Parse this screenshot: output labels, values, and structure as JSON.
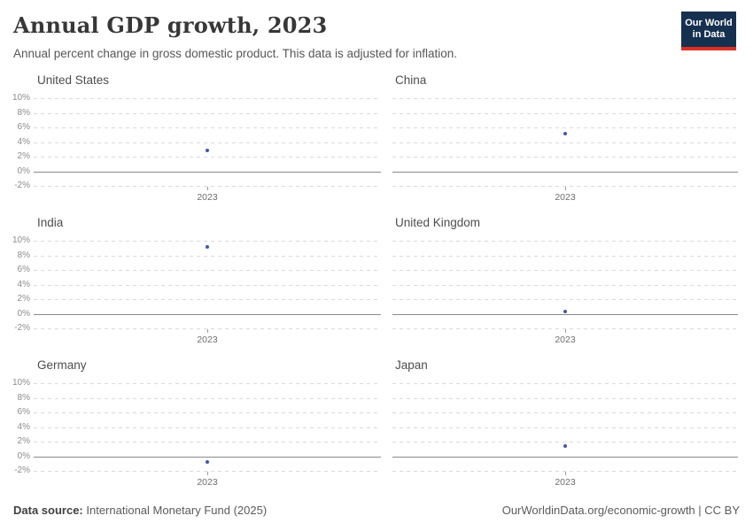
{
  "header": {
    "title": "Annual GDP growth, 2023",
    "subtitle": "Annual percent change in gross domestic product. This data is adjusted for inflation.",
    "logo": {
      "line1": "Our World",
      "line2": "in Data"
    }
  },
  "chart_data": {
    "type": "scatter",
    "facet_layout": "2x3",
    "x": [
      2023
    ],
    "x_tick_label": "2023",
    "y_ticks": [
      "10%",
      "8%",
      "6%",
      "4%",
      "2%",
      "0%",
      "-2%"
    ],
    "ylim": [
      -2,
      10
    ],
    "grid": "dashed horizontal",
    "panels": [
      {
        "name": "United States",
        "year": 2023,
        "value": 2.9
      },
      {
        "name": "China",
        "year": 2023,
        "value": 5.2
      },
      {
        "name": "India",
        "year": 2023,
        "value": 9.2
      },
      {
        "name": "United Kingdom",
        "year": 2023,
        "value": 0.3
      },
      {
        "name": "Germany",
        "year": 2023,
        "value": -0.7
      },
      {
        "name": "Japan",
        "year": 2023,
        "value": 1.4
      }
    ],
    "ylabel": "",
    "xlabel": ""
  },
  "footer": {
    "source_label": "Data source:",
    "source_value": " International Monetary Fund (2025)",
    "link": "OurWorldinData.org/economic-growth | CC BY"
  },
  "colors": {
    "dot": "#4656a3",
    "grid": "#dadada",
    "zero_line": "#8a8a8a",
    "logo_bg": "#16304f",
    "logo_red": "#dc2f26"
  }
}
